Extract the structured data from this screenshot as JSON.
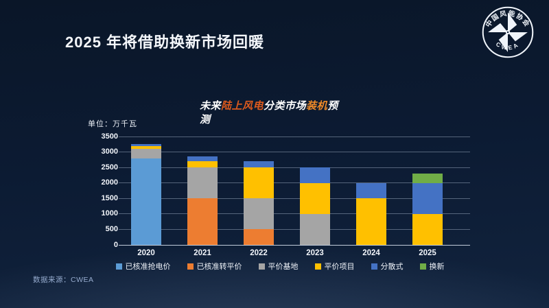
{
  "slide": {
    "title": "2025 年将借助换新市场回暖",
    "source": "数据来源：CWEA",
    "logo": {
      "top_text": "中国风能协会",
      "bottom_text": "CWEA"
    }
  },
  "chart": {
    "title_segments": [
      {
        "text": "未来",
        "color": "#ffffff"
      },
      {
        "text": "陆上风电",
        "color": "#dd5a1d"
      },
      {
        "text": "分类市场",
        "color": "#ffffff"
      },
      {
        "text": "装机",
        "color": "#ef8a28"
      },
      {
        "text": "预测",
        "color": "#ffffff"
      }
    ]
  },
  "chart_data": {
    "type": "bar",
    "stacked": true,
    "title": "未来陆上风电分类市场装机预测",
    "ylabel_unit": "单位：万千瓦",
    "categories": [
      "2020",
      "2021",
      "2022",
      "2023",
      "2024",
      "2025"
    ],
    "series": [
      {
        "name": "已核准抢电价",
        "color": "#5B9BD5",
        "values": [
          2800,
          0,
          0,
          0,
          0,
          0
        ]
      },
      {
        "name": "已核准转平价",
        "color": "#ED7D31",
        "values": [
          0,
          1500,
          500,
          0,
          0,
          0
        ]
      },
      {
        "name": "平价基地",
        "color": "#A5A5A5",
        "values": [
          300,
          1000,
          1000,
          1000,
          0,
          0
        ]
      },
      {
        "name": "平价项目",
        "color": "#FFC000",
        "values": [
          100,
          200,
          1000,
          1000,
          1500,
          1000
        ]
      },
      {
        "name": "分散式",
        "color": "#4472C4",
        "values": [
          50,
          150,
          200,
          500,
          500,
          1000
        ]
      },
      {
        "name": "换新",
        "color": "#70AD47",
        "values": [
          0,
          0,
          0,
          0,
          0,
          300
        ]
      }
    ],
    "ylim": [
      0,
      3500
    ],
    "ytick_step": 500,
    "grid": true,
    "legend_position": "bottom"
  }
}
